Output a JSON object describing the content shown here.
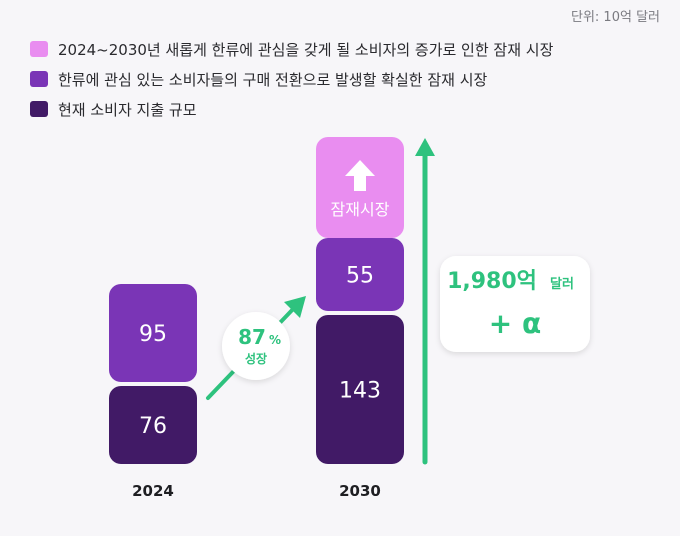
{
  "unit_label": "단위: 10억 달러",
  "legend": [
    {
      "label": "2024~2030년 새롭게 한류에 관심을 갖게 될 소비자의 증가로 인한 잠재 시장",
      "color": "#e98df0"
    },
    {
      "label": "한류에 관심 있는 소비자들의 구매 전환으로 발생할 확실한 잠재 시장",
      "color": "#7a35b6"
    },
    {
      "label": "현재 소비자 지출 규모",
      "color": "#411a66"
    }
  ],
  "growth": {
    "value": "87",
    "unit": "%",
    "label": "성장"
  },
  "total": {
    "value": "1,980억",
    "unit": "달러",
    "plus": "+ α"
  },
  "chart_data": {
    "type": "bar",
    "stacked": true,
    "categories": [
      "2024",
      "2030"
    ],
    "series": [
      {
        "name": "현재 소비자 지출 규모",
        "values": [
          76,
          143
        ],
        "color": "#411a66"
      },
      {
        "name": "한류에 관심 있는 소비자들의 구매 전환으로 발생할 확실한 잠재 시장",
        "values": [
          95,
          55
        ],
        "color": "#7a35b6"
      },
      {
        "name": "2024~2030년 새롭게 한류에 관심을 갖게 될 소비자의 증가로 인한 잠재 시장",
        "values": [
          null,
          null
        ],
        "label_text": "잠재시장",
        "color": "#e98df0"
      }
    ],
    "data_labels": [
      [
        "76",
        "143"
      ],
      [
        "95",
        "55"
      ]
    ],
    "arrow_color": "#2ec27e"
  }
}
